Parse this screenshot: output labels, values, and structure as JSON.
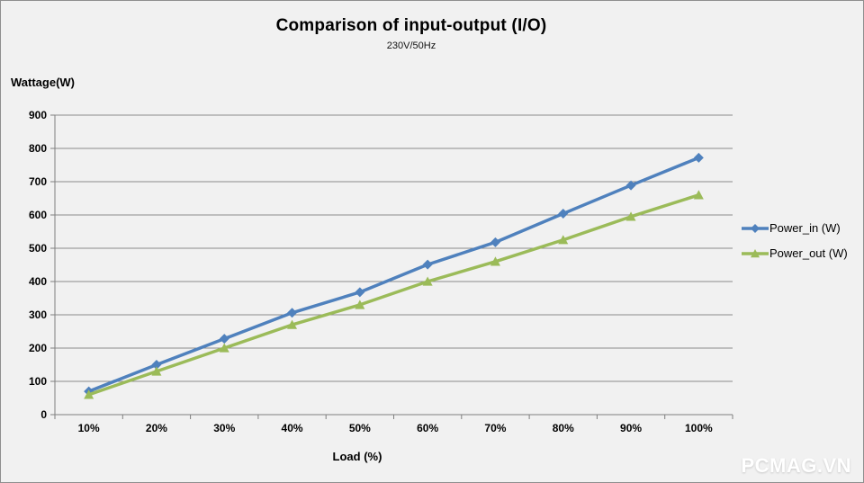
{
  "window": {
    "watermark": "PCMAG.VN"
  },
  "colors": {
    "background": "#F1F1F1",
    "grid": "#8A8A8A",
    "axis": "#7F7F7F",
    "power_in": "#4F81BD",
    "power_out": "#9BBB59",
    "watermark": "#FFFFFF"
  },
  "chart_data": {
    "type": "line",
    "title": "Comparison of input-output (I/O)",
    "subtitle": "230V/50Hz",
    "xlabel": "Load (%)",
    "ylabel": "Wattage(W)",
    "categories": [
      "10%",
      "20%",
      "30%",
      "40%",
      "50%",
      "60%",
      "70%",
      "80%",
      "90%",
      "100%"
    ],
    "series": [
      {
        "name": "Power_in (W)",
        "color": "#4F81BD",
        "marker": "diamond",
        "values": [
          70,
          150,
          228,
          306,
          368,
          451,
          518,
          604,
          689,
          772
        ]
      },
      {
        "name": "Power_out (W)",
        "color": "#9BBB59",
        "marker": "triangle",
        "values": [
          60,
          130,
          200,
          270,
          330,
          400,
          460,
          525,
          595,
          660
        ]
      }
    ],
    "ylim": [
      0,
      900
    ],
    "ytick_step": 100,
    "yticks": [
      0,
      100,
      200,
      300,
      400,
      500,
      600,
      700,
      800,
      900
    ],
    "grid": true,
    "legend_position": "right"
  }
}
